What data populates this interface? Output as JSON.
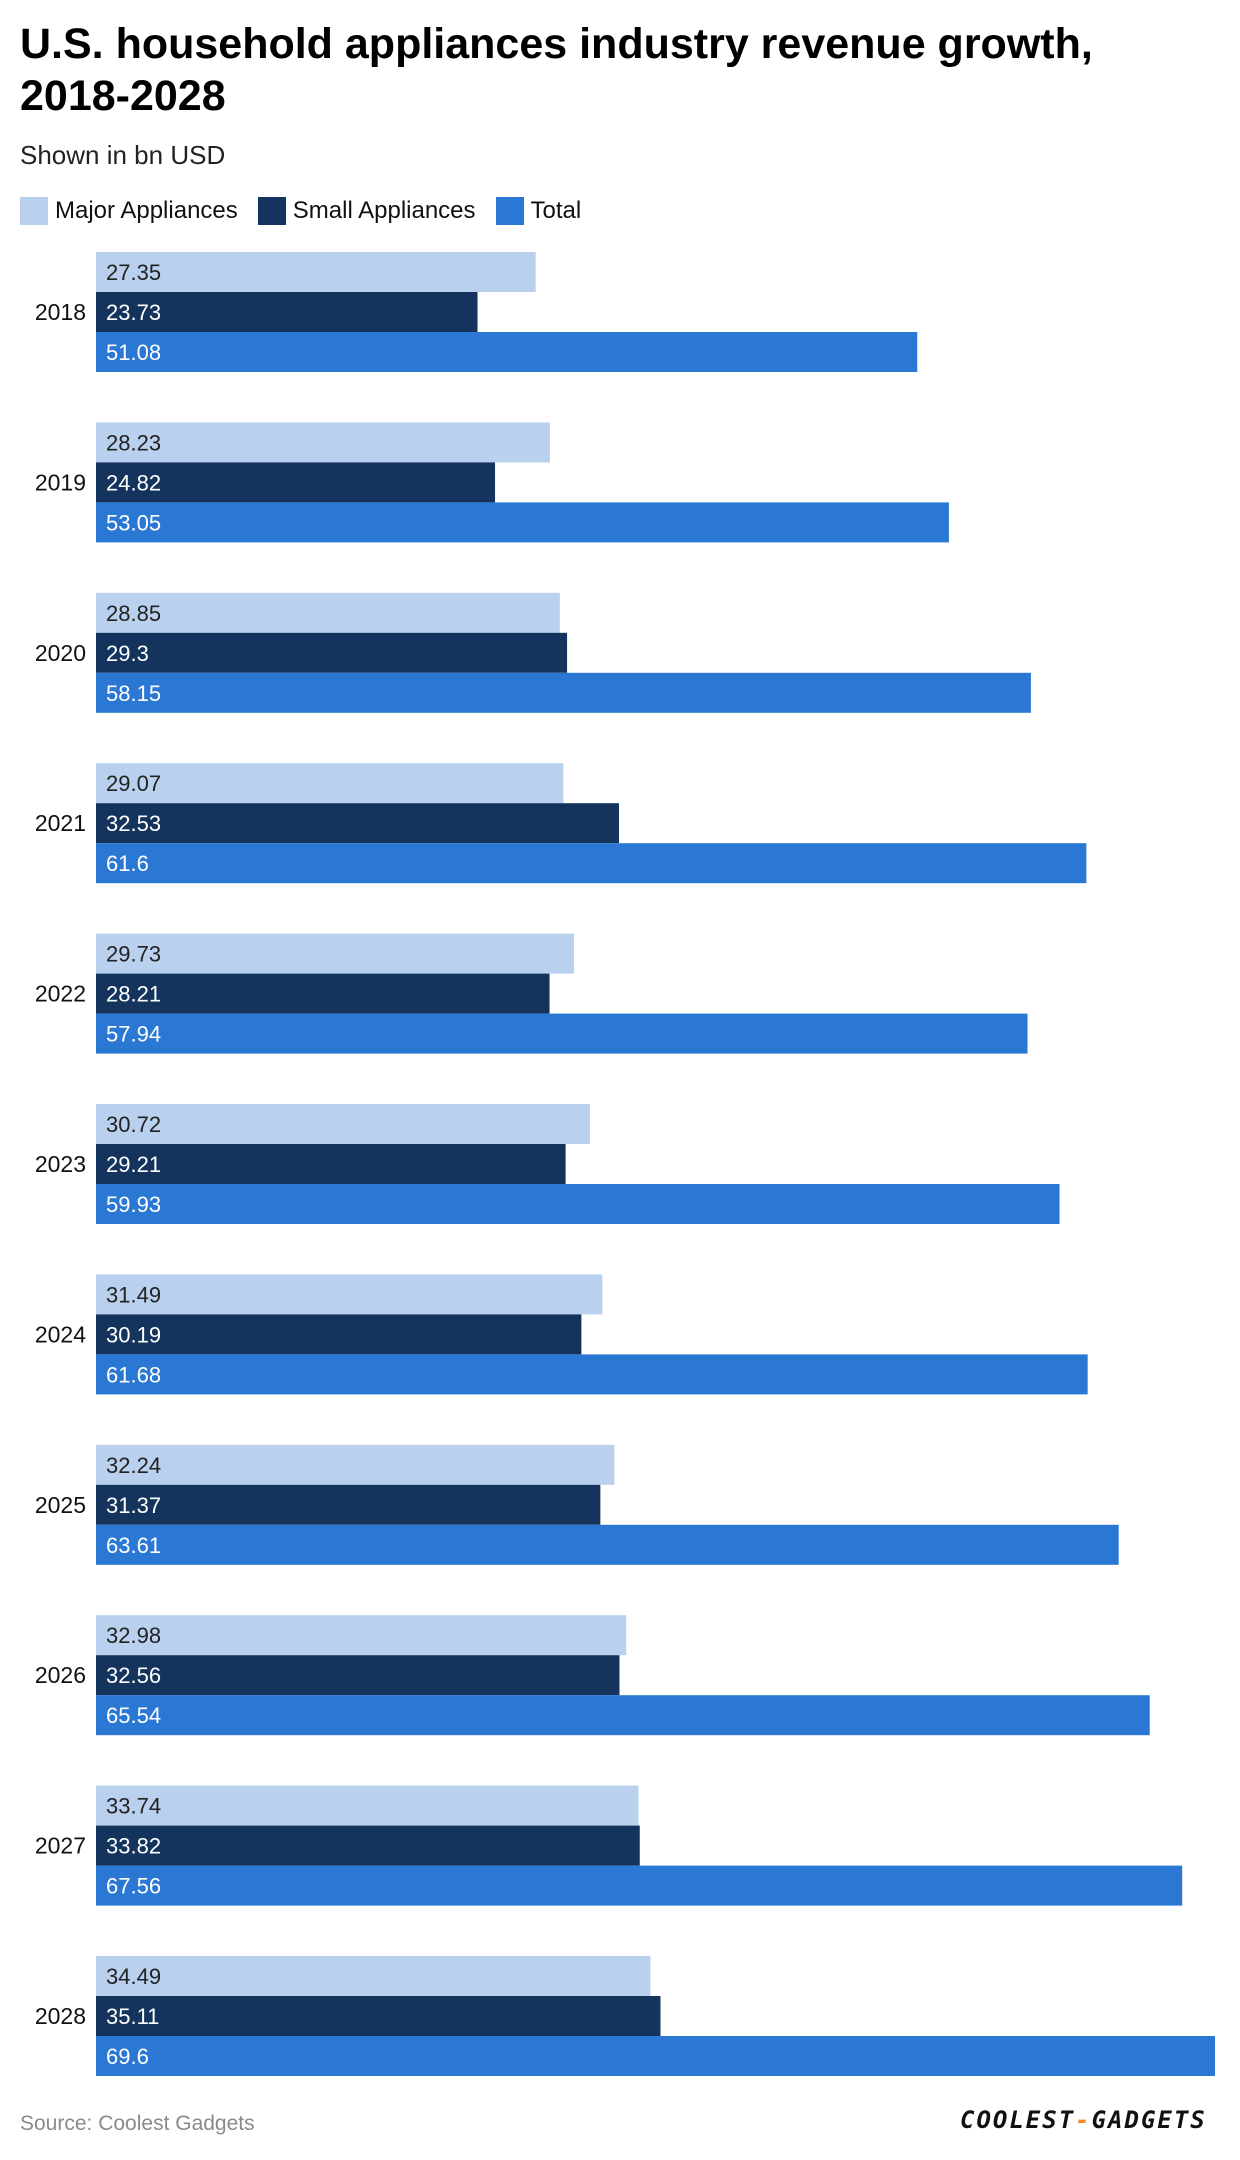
{
  "title": "U.S. household appliances industry revenue growth, 2018-2028",
  "subtitle": "Shown in bn USD",
  "source": "Source: Coolest Gadgets",
  "logo": {
    "left": "COOLEST",
    "dash": "-",
    "right": "GADGETS"
  },
  "colors": {
    "major": "#b9d1ee",
    "small": "#14345e",
    "total": "#2b78d4"
  },
  "chart_data": {
    "type": "bar",
    "orientation": "horizontal",
    "categories": [
      "2018",
      "2019",
      "2020",
      "2021",
      "2022",
      "2023",
      "2024",
      "2025",
      "2026",
      "2027",
      "2028"
    ],
    "series": [
      {
        "name": "Major Appliances",
        "color": "#b9d1ee",
        "label_color": "#222222",
        "values": [
          27.35,
          28.23,
          28.85,
          29.07,
          29.73,
          30.72,
          31.49,
          32.24,
          32.98,
          33.74,
          34.49
        ]
      },
      {
        "name": "Small Appliances",
        "color": "#14345e",
        "label_color": "#ffffff",
        "values": [
          23.73,
          24.82,
          29.3,
          32.53,
          28.21,
          29.21,
          30.19,
          31.37,
          32.56,
          33.82,
          35.11
        ]
      },
      {
        "name": "Total",
        "color": "#2b78d4",
        "label_color": "#ffffff",
        "values": [
          51.08,
          53.05,
          58.15,
          61.6,
          57.94,
          59.93,
          61.68,
          63.61,
          65.54,
          67.56,
          69.6
        ]
      }
    ],
    "xlim": [
      0,
      69.6
    ],
    "grid": false,
    "legend": "top-left"
  }
}
